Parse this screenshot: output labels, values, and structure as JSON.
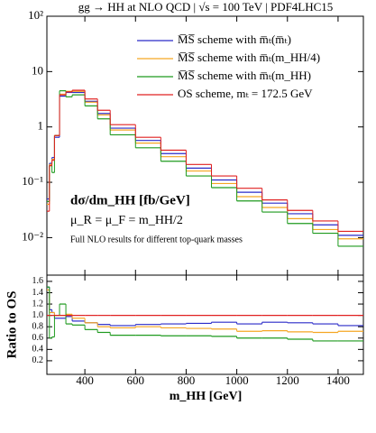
{
  "chart_data": [
    {
      "type": "histogram",
      "title": "gg → HH at NLO QCD | √s = 100 TeV | PDF4LHC15",
      "annotations": [
        "dσ/dm_HH [fb/GeV]",
        "μ_R = μ_F = m_HH/2",
        "Full NLO results for different top-quark masses"
      ],
      "bins": [
        250,
        260,
        270,
        280,
        300,
        325,
        350,
        400,
        450,
        500,
        600,
        700,
        800,
        900,
        1000,
        1100,
        1200,
        1300,
        1400,
        1500
      ],
      "xlim": [
        250,
        1500
      ],
      "ylim": [
        0.0021,
        100
      ],
      "log_scale": true,
      "yticks": [
        {
          "value": 100,
          "label": "10²"
        },
        10,
        1,
        {
          "value": 0.1,
          "label": "10⁻¹"
        },
        {
          "value": 0.01,
          "label": "10⁻²"
        }
      ],
      "legend": "upper right",
      "series": [
        {
          "name": "M̅S̅ scheme with m̅ₜ(m̅ₜ)",
          "color": "#2a2ac8",
          "values": [
            0.05,
            0.22,
            0.28,
            0.65,
            3.6,
            4.2,
            4.2,
            2.9,
            1.75,
            0.95,
            0.57,
            0.33,
            0.18,
            0.11,
            0.066,
            0.042,
            0.027,
            0.017,
            0.011
          ]
        },
        {
          "name": "M̅S̅ scheme with m̅ₜ(m_HH/4)",
          "color": "#f5a623",
          "values": [
            0.04,
            0.21,
            0.26,
            0.7,
            3.9,
            4.4,
            4.4,
            2.8,
            1.65,
            0.88,
            0.51,
            0.29,
            0.16,
            0.095,
            0.055,
            0.035,
            0.022,
            0.014,
            0.0095
          ]
        },
        {
          "name": "M̅S̅ scheme with m̅ₜ(m_HH)",
          "color": "#1e9a1e",
          "values": [
            0.045,
            0.2,
            0.15,
            0.7,
            4.5,
            3.5,
            3.8,
            2.4,
            1.4,
            0.72,
            0.42,
            0.24,
            0.13,
            0.08,
            0.046,
            0.029,
            0.018,
            0.012,
            0.007
          ]
        },
        {
          "name": "OS scheme, mₜ = 172.5 GeV",
          "color": "#e02020",
          "values": [
            0.03,
            0.2,
            0.25,
            0.7,
            3.8,
            4.3,
            4.6,
            3.2,
            2.0,
            1.1,
            0.65,
            0.38,
            0.21,
            0.13,
            0.078,
            0.048,
            0.031,
            0.02,
            0.013
          ]
        }
      ]
    },
    {
      "type": "histogram",
      "ylabel": "Ratio to OS",
      "xlabel": "m_HH [GeV]",
      "bins": [
        250,
        260,
        270,
        280,
        300,
        325,
        350,
        400,
        450,
        500,
        600,
        700,
        800,
        900,
        1000,
        1100,
        1200,
        1300,
        1400,
        1500
      ],
      "xlim": [
        250,
        1500
      ],
      "xticks": [
        400,
        600,
        800,
        1000,
        1200,
        1400
      ],
      "ylim": [
        -0.04,
        1.71
      ],
      "yticks": [
        0.2,
        0.4,
        0.6,
        0.8,
        {
          "value": 1.0,
          "label": "1.0"
        },
        1.2,
        1.4,
        1.6
      ],
      "series": [
        {
          "color": "#2a2ac8",
          "values": [
            1.5,
            1.1,
            1.05,
            0.95,
            0.95,
            0.98,
            0.9,
            0.87,
            0.84,
            0.82,
            0.84,
            0.85,
            0.86,
            0.88,
            0.85,
            0.88,
            0.87,
            0.85,
            0.82
          ]
        },
        {
          "color": "#f5a623",
          "values": [
            1.45,
            1.05,
            1.05,
            1.0,
            1.0,
            1.02,
            0.95,
            0.87,
            0.8,
            0.78,
            0.8,
            0.78,
            0.77,
            0.76,
            0.72,
            0.73,
            0.71,
            0.7,
            0.72
          ]
        },
        {
          "color": "#1e9a1e",
          "values": [
            1.5,
            0.6,
            0.62,
            1.0,
            1.2,
            0.85,
            0.83,
            0.75,
            0.7,
            0.65,
            0.65,
            0.64,
            0.64,
            0.63,
            0.6,
            0.6,
            0.58,
            0.55,
            0.55
          ]
        },
        {
          "color": "#e02020",
          "values": [
            1,
            1,
            1,
            1,
            1,
            1,
            1,
            1,
            1,
            1,
            1,
            1,
            1,
            1,
            1,
            1,
            1,
            1,
            1
          ]
        }
      ]
    }
  ]
}
